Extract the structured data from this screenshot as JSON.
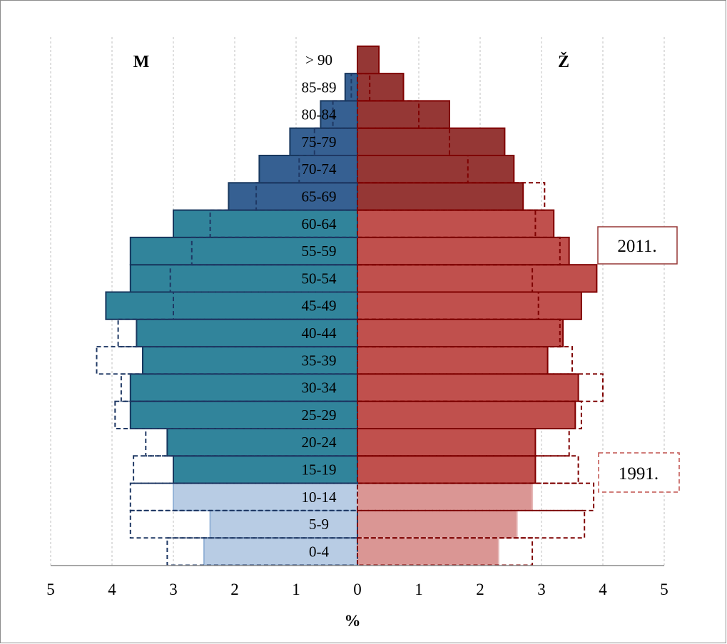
{
  "chart_data": {
    "type": "bar",
    "subtype": "population-pyramid",
    "title": "",
    "xlabel": "%",
    "ylabel": "",
    "xlim": [
      -5,
      5
    ],
    "x_ticks": [
      5,
      4,
      3,
      2,
      1,
      0,
      1,
      2,
      3,
      4,
      5
    ],
    "grid": "vertical-dotted",
    "side_labels": {
      "male": "M",
      "female": "Ž"
    },
    "categories": [
      "0-4",
      "5-9",
      "10-14",
      "15-19",
      "20-24",
      "25-29",
      "30-34",
      "35-39",
      "40-44",
      "45-49",
      "50-54",
      "55-59",
      "60-64",
      "65-69",
      "70-74",
      "75-79",
      "80-84",
      "85-89",
      "> 90"
    ],
    "series": [
      {
        "name": "2011.",
        "sex": "male",
        "style": "filled",
        "values": [
          2.5,
          2.4,
          3.0,
          3.0,
          3.1,
          3.7,
          3.7,
          3.5,
          3.6,
          4.1,
          3.7,
          3.7,
          3.0,
          2.1,
          1.6,
          1.1,
          0.6,
          0.2,
          0.0
        ]
      },
      {
        "name": "2011.",
        "sex": "female",
        "style": "filled",
        "values": [
          2.3,
          2.6,
          2.85,
          2.9,
          2.9,
          3.55,
          3.6,
          3.1,
          3.35,
          3.65,
          3.9,
          3.45,
          3.2,
          2.7,
          2.55,
          2.4,
          1.5,
          0.75,
          0.35
        ]
      },
      {
        "name": "1991.",
        "sex": "male",
        "style": "dashed",
        "values": [
          3.1,
          3.7,
          3.7,
          3.65,
          3.45,
          3.95,
          3.85,
          4.25,
          3.9,
          3.0,
          3.05,
          2.7,
          2.4,
          1.65,
          0.95,
          0.7,
          0.4,
          0.1,
          0.0
        ]
      },
      {
        "name": "1991.",
        "sex": "female",
        "style": "dashed",
        "values": [
          2.85,
          3.7,
          3.85,
          3.6,
          3.45,
          3.65,
          4.0,
          3.5,
          3.3,
          2.95,
          2.85,
          3.3,
          2.9,
          3.05,
          1.8,
          1.5,
          1.0,
          0.2,
          0.0
        ]
      }
    ],
    "legend": [
      "2011.",
      "1991."
    ],
    "legend_placement": "right",
    "colors": {
      "male_young": "#b8cce4",
      "male_young_edge": "#95b3d7",
      "male_working": "#31849b",
      "male_old": "#366092",
      "male_edge": "#17375e",
      "male_dash": "#1f3864",
      "female_young": "#da9694",
      "female_young_edge": "#e6b8b7",
      "female_working": "#c0504d",
      "female_old": "#953735",
      "female_edge": "#7f0000",
      "female_dash": "#7f0000",
      "legend_2011_border": "#953735",
      "legend_1991_border": "#c0504d"
    }
  }
}
